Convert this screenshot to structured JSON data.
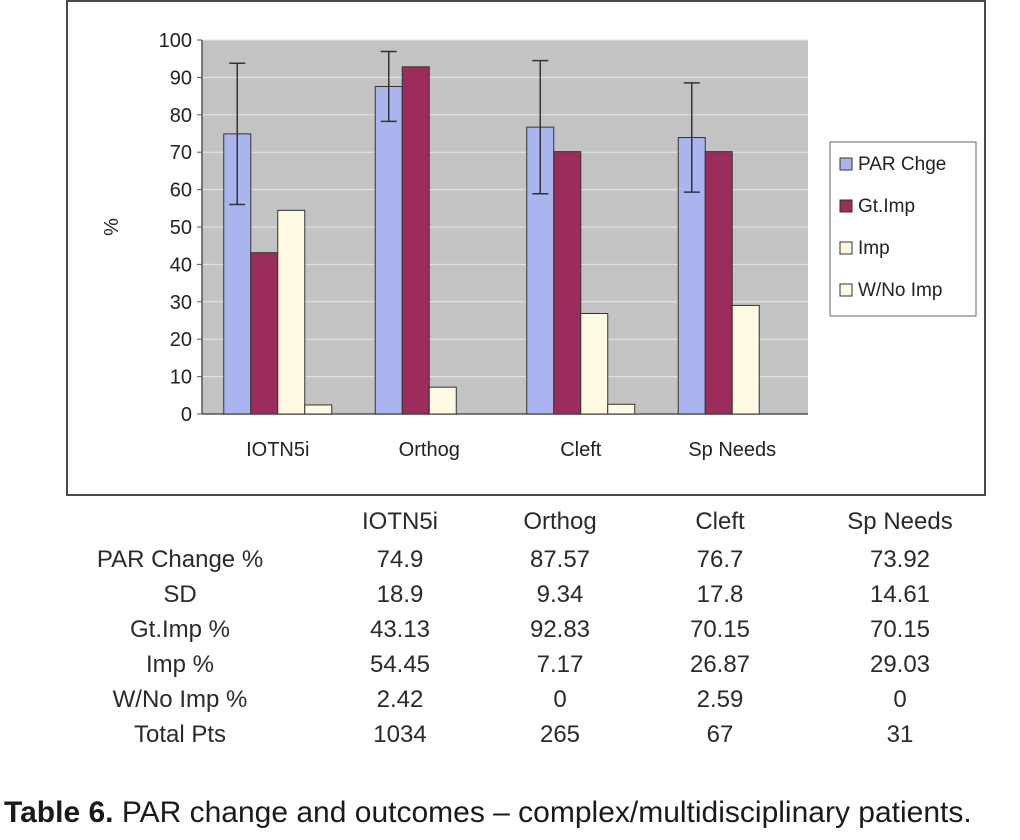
{
  "chart_data": {
    "type": "bar",
    "categories": [
      "IOTN5i",
      "Orthog",
      "Cleft",
      "Sp Needs"
    ],
    "ylabel": "%",
    "ylim": [
      0,
      100
    ],
    "yticks": [
      0,
      10,
      20,
      30,
      40,
      50,
      60,
      70,
      80,
      90,
      100
    ],
    "grid": true,
    "legend": "right",
    "series": [
      {
        "name": "PAR Chge",
        "values": [
          74.9,
          87.57,
          76.7,
          73.92
        ],
        "error": [
          18.9,
          9.34,
          17.8,
          14.61
        ],
        "color": "#aab4ee"
      },
      {
        "name": "Gt.Imp",
        "values": [
          43.13,
          92.83,
          70.15,
          70.15
        ],
        "color": "#9c2c5c"
      },
      {
        "name": "Imp",
        "values": [
          54.45,
          7.17,
          26.87,
          29.03
        ],
        "color": "#fffbe2"
      },
      {
        "name": "W/No Imp",
        "values": [
          2.42,
          0,
          2.59,
          0
        ],
        "color": "#fffbe2"
      }
    ],
    "colors": {
      "plot_bg": "#c3c3c3",
      "grid": "#e6e6e6",
      "frame": "#4a4a4a"
    }
  },
  "table": {
    "headers": [
      "IOTN5i",
      "Orthog",
      "Cleft",
      "Sp Needs"
    ],
    "rows": [
      {
        "label": "PAR Change %",
        "values": [
          "74.9",
          "87.57",
          "76.7",
          "73.92"
        ]
      },
      {
        "label": "SD",
        "values": [
          "18.9",
          "9.34",
          "17.8",
          "14.61"
        ]
      },
      {
        "label": "Gt.Imp %",
        "values": [
          "43.13",
          "92.83",
          "70.15",
          "70.15"
        ]
      },
      {
        "label": "Imp %",
        "values": [
          "54.45",
          "7.17",
          "26.87",
          "29.03"
        ]
      },
      {
        "label": "W/No Imp %",
        "values": [
          "2.42",
          "0",
          "2.59",
          "0"
        ]
      },
      {
        "label": "Total Pts",
        "values": [
          "1034",
          "265",
          "67",
          "31"
        ]
      }
    ]
  },
  "caption": {
    "label": "Table 6.",
    "text": " PAR change and outcomes – complex/multidisciplinary patients."
  }
}
